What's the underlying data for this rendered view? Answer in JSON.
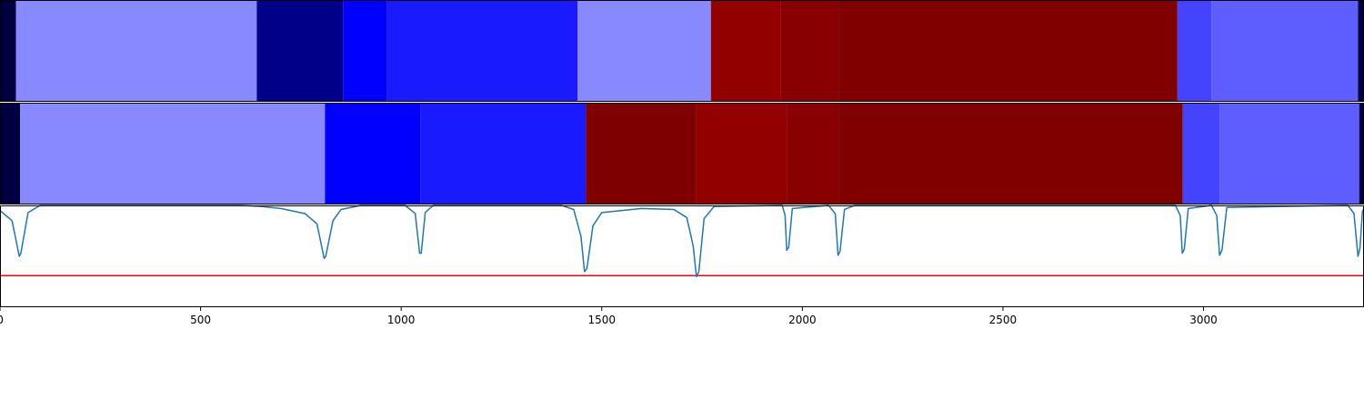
{
  "chart_data": [
    {
      "type": "heatmap",
      "xlim": [
        0,
        3400
      ],
      "segments": [
        {
          "start": 0,
          "end": 40,
          "color": "#000040"
        },
        {
          "start": 40,
          "end": 640,
          "color": "#8888ff"
        },
        {
          "start": 640,
          "end": 855,
          "color": "#000088"
        },
        {
          "start": 855,
          "end": 965,
          "color": "#0000ff"
        },
        {
          "start": 965,
          "end": 1440,
          "color": "#1a1aff"
        },
        {
          "start": 1440,
          "end": 1772,
          "color": "#8888ff"
        },
        {
          "start": 1772,
          "end": 1945,
          "color": "#920000"
        },
        {
          "start": 1945,
          "end": 2090,
          "color": "#880000"
        },
        {
          "start": 2090,
          "end": 2935,
          "color": "#800000"
        },
        {
          "start": 2935,
          "end": 3020,
          "color": "#4444ff"
        },
        {
          "start": 3020,
          "end": 3385,
          "color": "#5e5eff"
        },
        {
          "start": 3385,
          "end": 3400,
          "color": "#000040"
        }
      ]
    },
    {
      "type": "heatmap",
      "xlim": [
        0,
        3400
      ],
      "segments": [
        {
          "start": 0,
          "end": 50,
          "color": "#000040"
        },
        {
          "start": 50,
          "end": 810,
          "color": "#8888ff"
        },
        {
          "start": 810,
          "end": 1048,
          "color": "#0000ff"
        },
        {
          "start": 1048,
          "end": 1460,
          "color": "#1a1aff"
        },
        {
          "start": 1460,
          "end": 1735,
          "color": "#7e0000"
        },
        {
          "start": 1735,
          "end": 1962,
          "color": "#920000"
        },
        {
          "start": 1962,
          "end": 2090,
          "color": "#880000"
        },
        {
          "start": 2090,
          "end": 2948,
          "color": "#800000"
        },
        {
          "start": 2948,
          "end": 3040,
          "color": "#4444ff"
        },
        {
          "start": 3040,
          "end": 3388,
          "color": "#5e5eff"
        },
        {
          "start": 3388,
          "end": 3400,
          "color": "#000040"
        }
      ]
    },
    {
      "type": "line",
      "xlim": [
        0,
        3400
      ],
      "ylim": [
        0,
        1
      ],
      "grid": false,
      "x_ticks": [
        0,
        500,
        1000,
        1500,
        2000,
        2500,
        3000
      ],
      "x_tick_labels": [
        "0",
        "500",
        "1000",
        "1500",
        "2000",
        "2500",
        "3000"
      ],
      "series": [
        {
          "color": "#1f77b4",
          "values": [
            [
              0,
              0.95
            ],
            [
              30,
              0.85
            ],
            [
              48,
              0.5
            ],
            [
              52,
              0.53
            ],
            [
              70,
              0.93
            ],
            [
              100,
              1.0
            ],
            [
              600,
              1.0
            ],
            [
              650,
              0.99
            ],
            [
              700,
              0.97
            ],
            [
              760,
              0.92
            ],
            [
              790,
              0.82
            ],
            [
              808,
              0.48
            ],
            [
              812,
              0.5
            ],
            [
              830,
              0.85
            ],
            [
              850,
              0.96
            ],
            [
              900,
              1.0
            ],
            [
              1010,
              1.0
            ],
            [
              1035,
              0.92
            ],
            [
              1046,
              0.53
            ],
            [
              1050,
              0.53
            ],
            [
              1060,
              0.93
            ],
            [
              1080,
              1.0
            ],
            [
              1400,
              1.0
            ],
            [
              1430,
              0.96
            ],
            [
              1448,
              0.7
            ],
            [
              1457,
              0.35
            ],
            [
              1463,
              0.38
            ],
            [
              1478,
              0.8
            ],
            [
              1500,
              0.93
            ],
            [
              1600,
              0.97
            ],
            [
              1680,
              0.96
            ],
            [
              1712,
              0.88
            ],
            [
              1728,
              0.6
            ],
            [
              1736,
              0.3
            ],
            [
              1742,
              0.35
            ],
            [
              1755,
              0.87
            ],
            [
              1780,
              0.99
            ],
            [
              1950,
              1.0
            ],
            [
              1957,
              0.9
            ],
            [
              1961,
              0.56
            ],
            [
              1966,
              0.59
            ],
            [
              1975,
              0.97
            ],
            [
              2065,
              1.0
            ],
            [
              2082,
              0.92
            ],
            [
              2089,
              0.51
            ],
            [
              2094,
              0.55
            ],
            [
              2105,
              0.96
            ],
            [
              2130,
              1.0
            ],
            [
              2930,
              1.0
            ],
            [
              2942,
              0.9
            ],
            [
              2947,
              0.53
            ],
            [
              2952,
              0.57
            ],
            [
              2962,
              0.97
            ],
            [
              3020,
              1.0
            ],
            [
              3033,
              0.9
            ],
            [
              3040,
              0.51
            ],
            [
              3046,
              0.56
            ],
            [
              3058,
              0.98
            ],
            [
              3360,
              1.0
            ],
            [
              3375,
              0.92
            ],
            [
              3385,
              0.5
            ],
            [
              3390,
              0.58
            ],
            [
              3396,
              0.94
            ],
            [
              3400,
              0.97
            ]
          ]
        }
      ],
      "hlines": [
        {
          "y": 0.31,
          "color": "#ff0000"
        }
      ]
    }
  ]
}
